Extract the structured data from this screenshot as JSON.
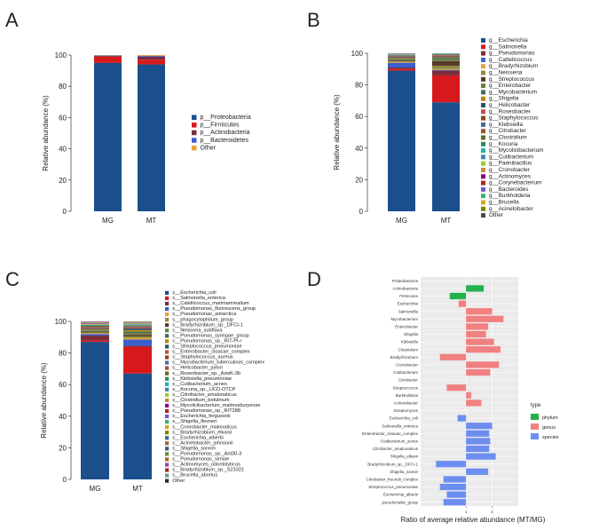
{
  "chart_data": [
    {
      "panel": "A",
      "type": "bar",
      "stacked": true,
      "categories": [
        "MG",
        "MT"
      ],
      "ylabel": "Relative abundance (%)",
      "ylim": [
        0,
        100
      ],
      "yticks": [
        0,
        20,
        40,
        60,
        80,
        100
      ],
      "legend_position": "right",
      "series": [
        {
          "name": "p__Proteobacteria",
          "color": "#1b4f8c",
          "values": [
            95,
            94
          ]
        },
        {
          "name": "p__Firmicutes",
          "color": "#d7191c",
          "values": [
            4,
            3
          ]
        },
        {
          "name": "p__Actinobacteria",
          "color": "#7b2d3b",
          "values": [
            0.5,
            2
          ]
        },
        {
          "name": "p__Bacteroidetes",
          "color": "#3a5fcd",
          "values": [
            0.3,
            0.5
          ]
        },
        {
          "name": "Other",
          "color": "#e8a33d",
          "values": [
            0.2,
            0.5
          ]
        }
      ]
    },
    {
      "panel": "B",
      "type": "bar",
      "stacked": true,
      "categories": [
        "MG",
        "MT"
      ],
      "ylabel": "Relative abundance (%)",
      "ylim": [
        0,
        100
      ],
      "yticks": [
        0,
        20,
        40,
        60,
        80,
        100
      ],
      "legend_position": "right",
      "series": [
        {
          "name": "g__Escherichia",
          "color": "#1b4f8c",
          "values": [
            89,
            69
          ]
        },
        {
          "name": "g__Salmonella",
          "color": "#d7191c",
          "values": [
            1,
            17
          ]
        },
        {
          "name": "g__Pseudomonas",
          "color": "#7b2d3b",
          "values": [
            1,
            3
          ]
        },
        {
          "name": "g__Cattelicoccus",
          "color": "#3a5fcd",
          "values": [
            3,
            0.5
          ]
        },
        {
          "name": "g__Bradyrhizobium",
          "color": "#e8a33d",
          "values": [
            0.5,
            0.5
          ]
        },
        {
          "name": "g__Neisseria",
          "color": "#8c8c3c",
          "values": [
            0.5,
            2
          ]
        },
        {
          "name": "g__Streptococcus",
          "color": "#5a3a2a",
          "values": [
            0.5,
            3
          ]
        },
        {
          "name": "g__Enterobacter",
          "color": "#6f7f3f",
          "values": [
            0.5,
            1
          ]
        },
        {
          "name": "g__Mycobacterium",
          "color": "#3f6e5e",
          "values": [
            0.5,
            1
          ]
        },
        {
          "name": "g__Shigella",
          "color": "#b8860b",
          "values": [
            0.5,
            0.5
          ]
        },
        {
          "name": "g__Helicobacter",
          "color": "#2f4f6f",
          "values": [
            0.5,
            0.5
          ]
        },
        {
          "name": "g__Roseobacter",
          "color": "#c0504d",
          "values": [
            0.3,
            0.5
          ]
        },
        {
          "name": "g__Staphylococcus",
          "color": "#8b4513",
          "values": [
            0.3,
            0.3
          ]
        },
        {
          "name": "g__Klebsiella",
          "color": "#4b6c9c",
          "values": [
            0.3,
            0.3
          ]
        },
        {
          "name": "g__Citrobacter",
          "color": "#a0522d",
          "values": [
            0.2,
            0.2
          ]
        },
        {
          "name": "g__Clostridium",
          "color": "#556b2f",
          "values": [
            0.2,
            0.2
          ]
        },
        {
          "name": "g__Kocuria",
          "color": "#2e8b57",
          "values": [
            0.2,
            0.2
          ]
        },
        {
          "name": "g__Mycolicibacterium",
          "color": "#20b2aa",
          "values": [
            0.2,
            0.2
          ]
        },
        {
          "name": "g__Cutibacterium",
          "color": "#4682b4",
          "values": [
            0.2,
            0.2
          ]
        },
        {
          "name": "g__Paenibacillus",
          "color": "#9acd32",
          "values": [
            0.1,
            0.1
          ]
        },
        {
          "name": "g__Cronobacter",
          "color": "#cd853f",
          "values": [
            0.1,
            0.1
          ]
        },
        {
          "name": "g__Actinomyces",
          "color": "#8b008b",
          "values": [
            0.1,
            0.1
          ]
        },
        {
          "name": "g__Corynebacterium",
          "color": "#b22222",
          "values": [
            0.1,
            0.1
          ]
        },
        {
          "name": "g__Bacteroides",
          "color": "#6a5acd",
          "values": [
            0.1,
            0.1
          ]
        },
        {
          "name": "g__Burkholderia",
          "color": "#3cb371",
          "values": [
            0.1,
            0.1
          ]
        },
        {
          "name": "g__Brucella",
          "color": "#daa520",
          "values": [
            0.1,
            0.1
          ]
        },
        {
          "name": "g__Acinetobacter",
          "color": "#808000",
          "values": [
            0.1,
            0.1
          ]
        },
        {
          "name": "Other",
          "color": "#4a4a4a",
          "values": [
            0.1,
            0.1
          ]
        }
      ]
    },
    {
      "panel": "C",
      "type": "bar",
      "stacked": true,
      "categories": [
        "MG",
        "MT"
      ],
      "ylabel": "Relative abundance (%)",
      "ylim": [
        0,
        100
      ],
      "yticks": [
        0,
        20,
        40,
        60,
        80,
        100
      ],
      "legend_position": "right",
      "series": [
        {
          "name": "s__Escherichia_coli",
          "color": "#1b4f8c",
          "values": [
            87,
            67
          ]
        },
        {
          "name": "s__Salmonella_enterica",
          "color": "#d7191c",
          "values": [
            1,
            17
          ]
        },
        {
          "name": "s__Catellicoccus_marimammalium",
          "color": "#7b2d3b",
          "values": [
            3,
            0.5
          ]
        },
        {
          "name": "s__Pseudomonas_fluorescens_group",
          "color": "#3a5fcd",
          "values": [
            1,
            4
          ]
        },
        {
          "name": "s__Pseudomonas_antarctica",
          "color": "#e8a33d",
          "values": [
            0.5,
            1
          ]
        },
        {
          "name": "s__phagocytophilum_group",
          "color": "#8c8c3c",
          "values": [
            0.5,
            1
          ]
        },
        {
          "name": "s__Bradyrhizobium_sp._DFCI-1",
          "color": "#5a3a2a",
          "values": [
            0.5,
            1
          ]
        },
        {
          "name": "s__Neisseria_subflava",
          "color": "#6f7f3f",
          "values": [
            0.5,
            1
          ]
        },
        {
          "name": "s__Pseudomonas_syringae_group",
          "color": "#3f6e5e",
          "values": [
            0.5,
            1
          ]
        },
        {
          "name": "s__Pseudomonas_sp._RIT-PI-r",
          "color": "#b8860b",
          "values": [
            0.5,
            1
          ]
        },
        {
          "name": "s__Streptococcus_pneumoniae",
          "color": "#2f4f6f",
          "values": [
            0.5,
            1
          ]
        },
        {
          "name": "s__Enterobacter_cloacae_complex",
          "color": "#c0504d",
          "values": [
            0.5,
            0.5
          ]
        },
        {
          "name": "s__Staphylococcus_aureus",
          "color": "#8b4513",
          "values": [
            0.3,
            0.5
          ]
        },
        {
          "name": "s__Mycobacterium_tuberculosis_complex",
          "color": "#4b6c9c",
          "values": [
            0.3,
            0.5
          ]
        },
        {
          "name": "s__Helicobacter_pylori",
          "color": "#a0522d",
          "values": [
            0.3,
            0.3
          ]
        },
        {
          "name": "s__Roseobacter_sp._AzwK-3b",
          "color": "#556b2f",
          "values": [
            0.3,
            0.3
          ]
        },
        {
          "name": "s__Klebsiella_pneumoniae",
          "color": "#2e8b57",
          "values": [
            0.3,
            0.3
          ]
        },
        {
          "name": "s__Cutibacterium_acnes",
          "color": "#20b2aa",
          "values": [
            0.2,
            0.3
          ]
        },
        {
          "name": "s__Kocuria_sp._UCD-OTCP",
          "color": "#4682b4",
          "values": [
            0.2,
            0.2
          ]
        },
        {
          "name": "s__Citrobacter_amalonaticus",
          "color": "#9acd32",
          "values": [
            0.2,
            0.2
          ]
        },
        {
          "name": "s__Clostridium_botulinum",
          "color": "#cd853f",
          "values": [
            0.2,
            0.2
          ]
        },
        {
          "name": "s__Mycolicibacterium_malmesburyense",
          "color": "#8b008b",
          "values": [
            0.2,
            0.2
          ]
        },
        {
          "name": "s__Pseudomonas_sp._RIT288",
          "color": "#b22222",
          "values": [
            0.2,
            0.2
          ]
        },
        {
          "name": "s__Escherichia_fergusonii",
          "color": "#6a5acd",
          "values": [
            0.1,
            0.1
          ]
        },
        {
          "name": "s__Shigella_flexneri",
          "color": "#3cb371",
          "values": [
            0.1,
            0.1
          ]
        },
        {
          "name": "s__Cronobacter_malonaticus",
          "color": "#daa520",
          "values": [
            0.1,
            0.1
          ]
        },
        {
          "name": "s__Bradyrhizobium_elkanii",
          "color": "#808000",
          "values": [
            0.1,
            0.1
          ]
        },
        {
          "name": "s__Escherichia_albertii",
          "color": "#2f6f8f",
          "values": [
            0.1,
            0.1
          ]
        },
        {
          "name": "s__Acinetobacter_johnsonii",
          "color": "#9c6644",
          "values": [
            0.1,
            0.1
          ]
        },
        {
          "name": "s__Shigella_sonnei",
          "color": "#3d5a80",
          "values": [
            0.1,
            0.1
          ]
        },
        {
          "name": "s__Pseudomonas_sp._Ant30-3",
          "color": "#6b8e23",
          "values": [
            0.1,
            0.1
          ]
        },
        {
          "name": "s__Pseudomonas_simiae",
          "color": "#b5651d",
          "values": [
            0.1,
            0.1
          ]
        },
        {
          "name": "s__Actinomyces_odontolyticus",
          "color": "#8e44ad",
          "values": [
            0.1,
            0.1
          ]
        },
        {
          "name": "s__Bradyrhizobium_sp._S23321",
          "color": "#a52a2a",
          "values": [
            0.1,
            0.1
          ]
        },
        {
          "name": "s__Brucella_abortus",
          "color": "#5f9ea0",
          "values": [
            0.1,
            0.1
          ]
        },
        {
          "name": "Other",
          "color": "#2a2a2a",
          "values": [
            0.1,
            0.1
          ]
        }
      ]
    },
    {
      "panel": "D",
      "type": "bar",
      "orientation": "horizontal",
      "xlabel": "Ratio of average relative abundance (MT/MG)",
      "xscale": "log",
      "xlim": [
        0.3,
        4
      ],
      "xticks": [
        1,
        2
      ],
      "grid": true,
      "legend_title": "type",
      "legend_position": "right",
      "legend": [
        {
          "name": "phylum",
          "color": "#22b14c"
        },
        {
          "name": "genus",
          "color": "#f28080"
        },
        {
          "name": "species",
          "color": "#6c8ef0"
        }
      ],
      "categories": [
        "Proteobacteria",
        "Actinobacteria",
        "Firmicutes",
        "Escherichia",
        "Salmonella",
        "Mycobacterium",
        "Enterobacter",
        "Shigella",
        "Klebsiella",
        "Clostridium",
        "Bradyrhizobium",
        "Cronobacter",
        "Cutibacterium",
        "Citrobacter",
        "Streptococcus",
        "Burkholderia",
        "Acinetobacter",
        "Streptomyces",
        "Escherichia_coli",
        "Salmonella_enterica",
        "Enterobacter_cloacae_complex",
        "Cutibacterium_acnes",
        "Citrobacter_amalonaticus",
        "Shigella_elkanii",
        "Bradyrhizobium_sp._DFCI-1",
        "Shigella_sonnei",
        "Citrobacter_freundii_complex",
        "Streptococcus_pneumoniae",
        "Escherichia_albertii",
        "pseudomallei_group"
      ],
      "types": [
        "phylum",
        "phylum",
        "phylum",
        "genus",
        "genus",
        "genus",
        "genus",
        "genus",
        "genus",
        "genus",
        "genus",
        "genus",
        "genus",
        "genus",
        "genus",
        "genus",
        "genus",
        "genus",
        "species",
        "species",
        "species",
        "species",
        "species",
        "species",
        "species",
        "species",
        "species",
        "species",
        "species",
        "species"
      ],
      "values": [
        1.0,
        1.6,
        0.65,
        0.82,
        2.0,
        2.7,
        1.8,
        1.7,
        2.1,
        2.5,
        0.5,
        2.4,
        1.9,
        1.0,
        0.6,
        1.15,
        1.5,
        1.0,
        0.8,
        2.0,
        1.85,
        1.9,
        1.85,
        2.2,
        0.45,
        1.8,
        0.55,
        0.5,
        0.6,
        0.55
      ]
    }
  ],
  "panels": {
    "a": {
      "letter": "A",
      "xtick": [
        "MG",
        "MT"
      ]
    },
    "b": {
      "letter": "B",
      "xtick": [
        "MG",
        "MT"
      ]
    },
    "c": {
      "letter": "C",
      "xtick": [
        "MG",
        "MT"
      ]
    },
    "d": {
      "letter": "D"
    }
  }
}
